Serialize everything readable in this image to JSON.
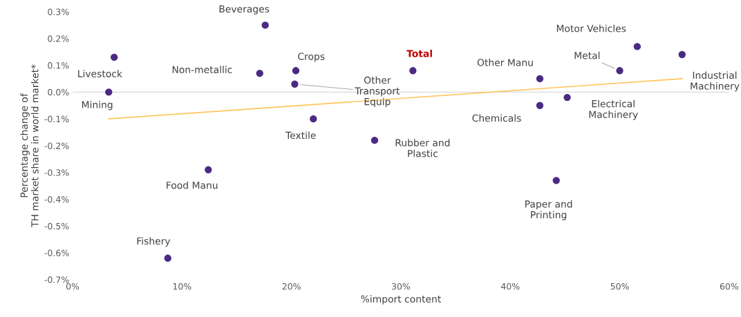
{
  "chart_data": {
    "type": "scatter",
    "xlabel": "%import content",
    "ylabel": "Percentage change of\nTH market share in world market*",
    "xlim": [
      0,
      60
    ],
    "ylim": [
      -0.7,
      0.3
    ],
    "xticks": [
      {
        "value": 0,
        "label": "0%"
      },
      {
        "value": 10,
        "label": "10%"
      },
      {
        "value": 20,
        "label": "20%"
      },
      {
        "value": 30,
        "label": "30%"
      },
      {
        "value": 40,
        "label": "40%"
      },
      {
        "value": 50,
        "label": "50%"
      },
      {
        "value": 60,
        "label": "60%"
      }
    ],
    "yticks": [
      {
        "value": -0.7,
        "label": "-0.7%"
      },
      {
        "value": -0.6,
        "label": "-0.6%"
      },
      {
        "value": -0.5,
        "label": "-0.5%"
      },
      {
        "value": -0.4,
        "label": "-0.4%"
      },
      {
        "value": -0.3,
        "label": "-0.3%"
      },
      {
        "value": -0.2,
        "label": "-0.2%"
      },
      {
        "value": -0.1,
        "label": "-0.1%"
      },
      {
        "value": 0,
        "label": "0.0%"
      },
      {
        "value": 0.1,
        "label": "0.1%"
      },
      {
        "value": 0.2,
        "label": "0.2%"
      },
      {
        "value": 0.3,
        "label": "0.3%"
      }
    ],
    "grid": false,
    "legend": false,
    "series": [
      {
        "marker": "circle",
        "color": "#4b2a84",
        "x": [
          3.8,
          3.3,
          17.6,
          17.1,
          20.4,
          20.3,
          22.0,
          31.1,
          27.6,
          12.4,
          8.7,
          42.7,
          42.7,
          45.2,
          44.2,
          50.0,
          51.6,
          55.7
        ],
        "values": [
          0.13,
          0.0,
          0.25,
          0.07,
          0.08,
          0.03,
          -0.1,
          0.08,
          -0.18,
          -0.29,
          -0.62,
          0.05,
          -0.05,
          -0.02,
          -0.33,
          0.08,
          0.17,
          0.14
        ]
      },
      {
        "type": "line",
        "color": "#ffc65c",
        "x": [
          3.3,
          55.7
        ],
        "values": [
          -0.1,
          0.05
        ]
      }
    ],
    "ref_lines": [
      {
        "axis": "y",
        "value": 0,
        "color": "#d9d9d9"
      }
    ],
    "annotations": [
      {
        "text": "Livestock",
        "x": 3.8,
        "y": 0.13
      },
      {
        "text": "Mining",
        "x": 3.3,
        "y": 0.0
      },
      {
        "text": "Beverages",
        "x": 17.6,
        "y": 0.25
      },
      {
        "text": "Non-metallic",
        "x": 17.1,
        "y": 0.07
      },
      {
        "text": "Crops",
        "x": 20.4,
        "y": 0.08
      },
      {
        "text": "Other\nTransport\nEquip",
        "x": 20.3,
        "y": 0.03
      },
      {
        "text": "Textile",
        "x": 22.0,
        "y": -0.1
      },
      {
        "text": "Total",
        "x": 31.1,
        "y": 0.08
      },
      {
        "text": "Rubber and\nPlastic",
        "x": 27.6,
        "y": -0.18
      },
      {
        "text": "Food Manu",
        "x": 12.4,
        "y": -0.29
      },
      {
        "text": "Fishery",
        "x": 8.7,
        "y": -0.62
      },
      {
        "text": "Other Manu",
        "x": 42.7,
        "y": 0.05
      },
      {
        "text": "Chemicals",
        "x": 42.7,
        "y": -0.05
      },
      {
        "text": "Electrical\nMachinery",
        "x": 45.2,
        "y": -0.02
      },
      {
        "text": "Paper and\nPrinting",
        "x": 44.2,
        "y": -0.33
      },
      {
        "text": "Metal",
        "x": 50.0,
        "y": 0.08
      },
      {
        "text": "Motor Vehicles",
        "x": 51.6,
        "y": 0.17
      },
      {
        "text": "Industrial\nMachinery",
        "x": 55.7,
        "y": 0.14
      }
    ]
  }
}
